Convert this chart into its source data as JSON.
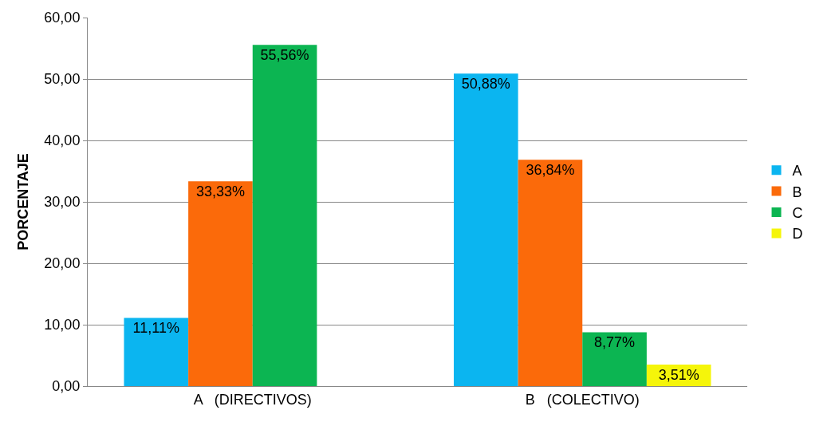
{
  "chart_data": {
    "type": "bar",
    "ylabel": "PORCENTAJE",
    "categories": [
      "A   (DIRECTIVOS)",
      "B   (COLECTIVO)"
    ],
    "series": [
      {
        "name": "A",
        "color": "#0bb5f0",
        "values": [
          11.11,
          50.88
        ],
        "value_labels": [
          "11,11%",
          "50,88%"
        ]
      },
      {
        "name": "B",
        "color": "#fb6a0a",
        "values": [
          33.33,
          36.84
        ],
        "value_labels": [
          "33,33%",
          "36,84%"
        ]
      },
      {
        "name": "C",
        "color": "#0cb552",
        "values": [
          55.56,
          8.77
        ],
        "value_labels": [
          "55,56%",
          "8,77%"
        ]
      },
      {
        "name": "D",
        "color": "#f5f50a",
        "values": [
          null,
          3.51
        ],
        "value_labels": [
          null,
          "3,51%"
        ]
      }
    ],
    "ylim": [
      0,
      60
    ],
    "yticks": [
      {
        "value": 0,
        "label": "0,00"
      },
      {
        "value": 10,
        "label": "10,00"
      },
      {
        "value": 20,
        "label": "20,00"
      },
      {
        "value": 30,
        "label": "30,00"
      },
      {
        "value": 40,
        "label": "40,00"
      },
      {
        "value": 50,
        "label": "50,00"
      },
      {
        "value": 60,
        "label": "60,00"
      }
    ],
    "grid": "y",
    "legend": "right"
  }
}
